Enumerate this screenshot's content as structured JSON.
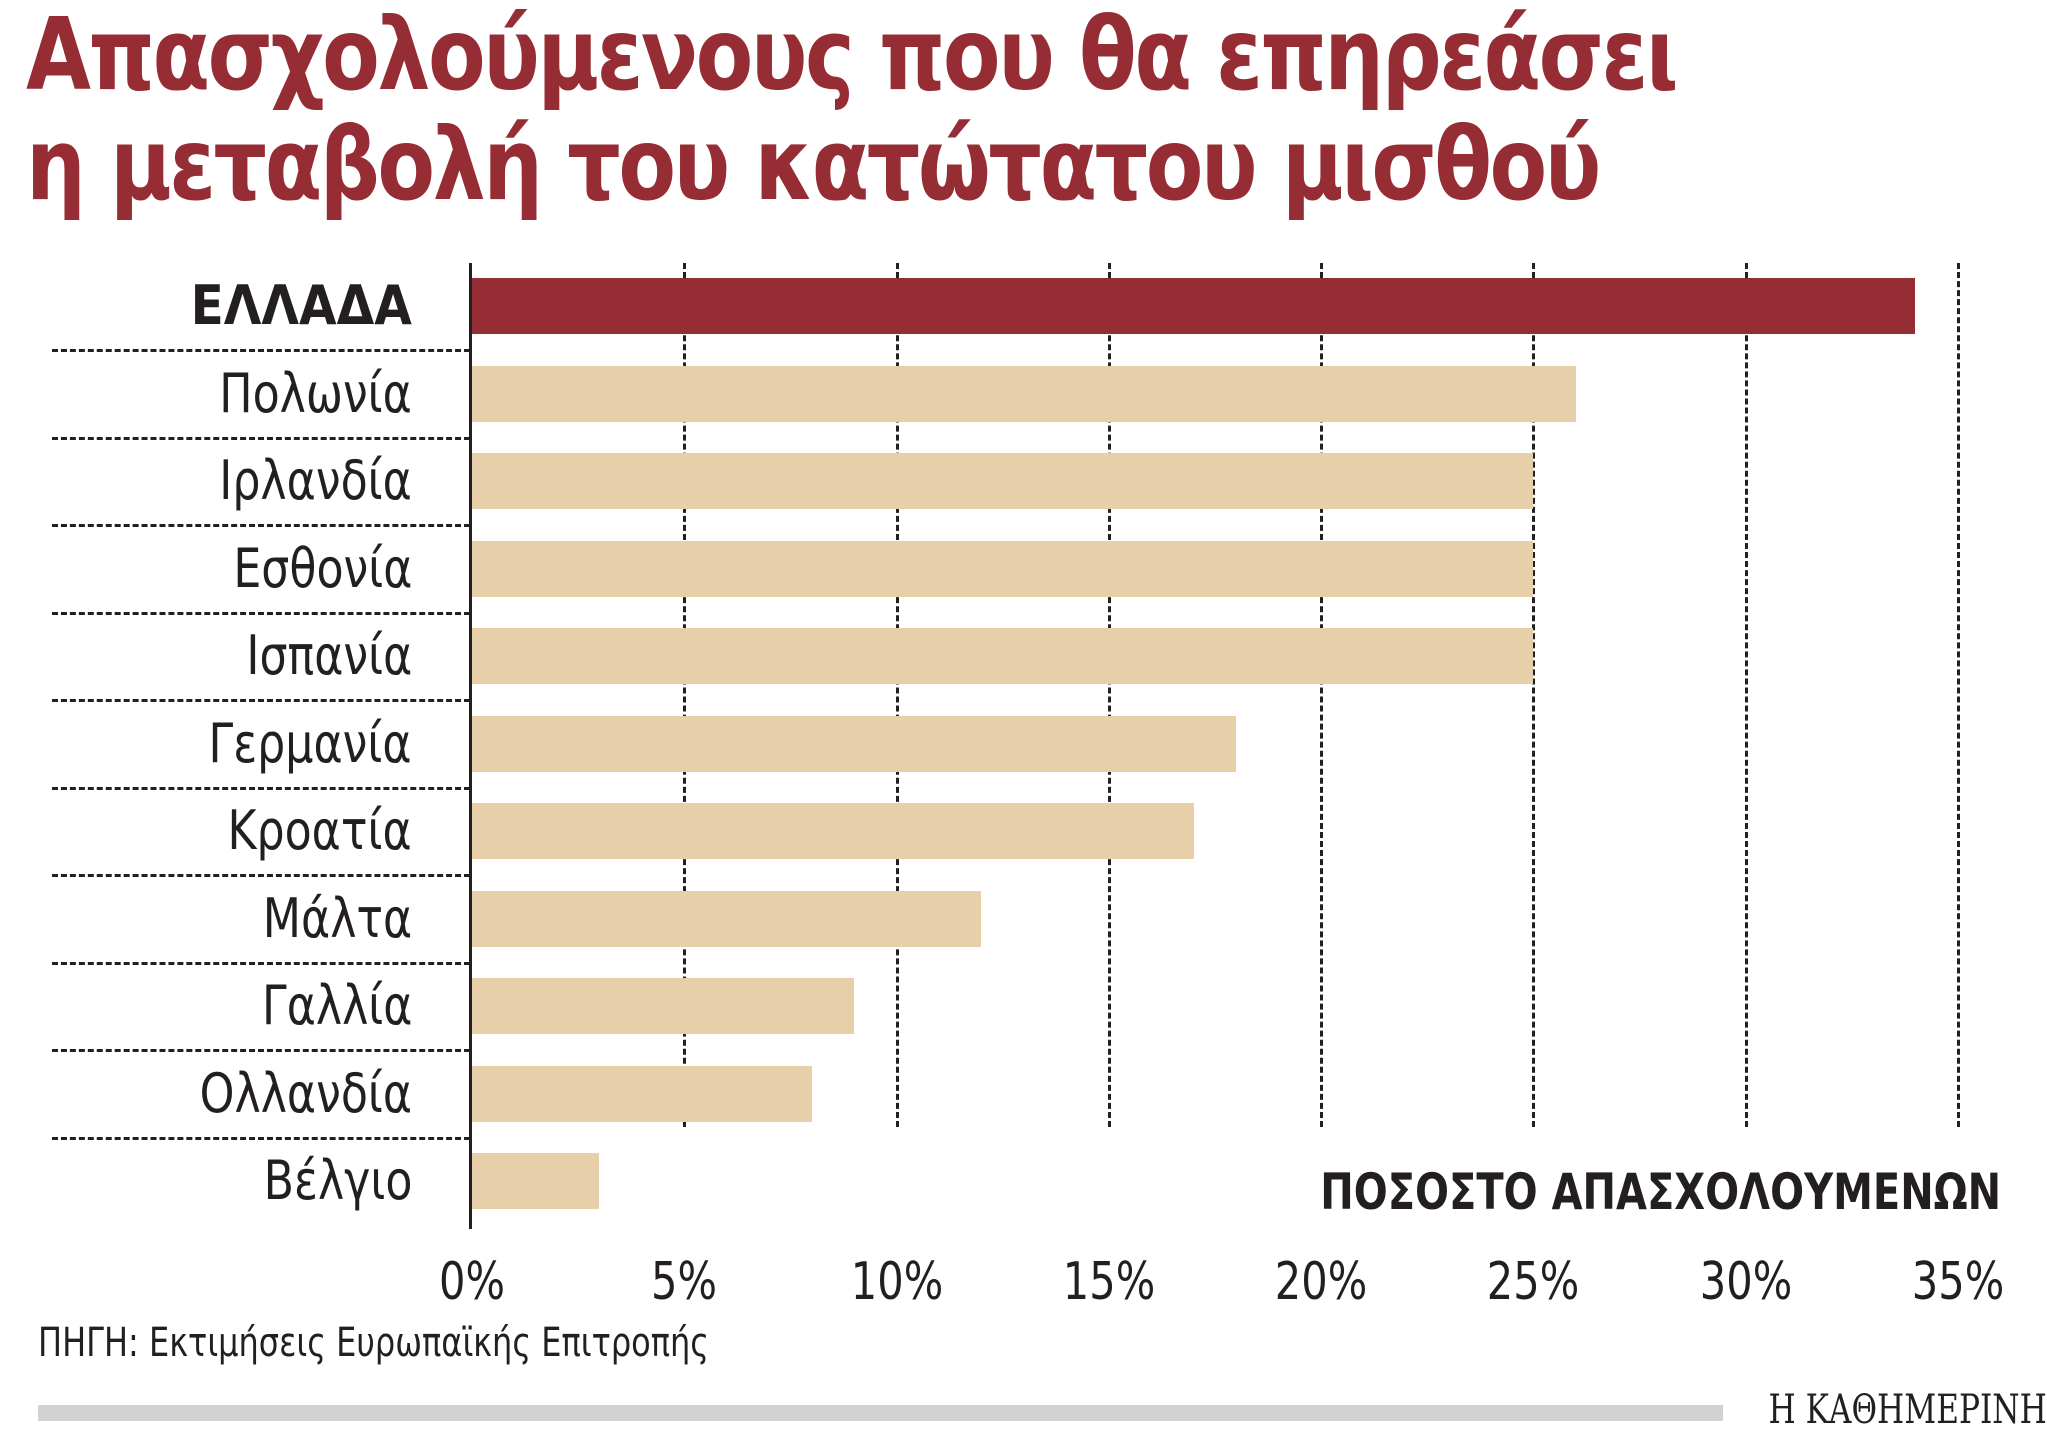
{
  "title": {
    "line1": "Απασχολούμενους που θα επηρεάσει",
    "line2": "η μεταβολή του κατώτατου μισθού"
  },
  "colors": {
    "title": "#962d34",
    "highlight_bar": "#962d34",
    "bar": "#e7d0a9",
    "text": "#231f20",
    "footer_bar": "#d1d2d4"
  },
  "chart": {
    "axis_title": "ΠΟΣΟΣΤΟ ΑΠΑΣΧΟΛΟΥΜΕΝΩΝ",
    "ticks": [
      "0%",
      "5%",
      "10%",
      "15%",
      "20%",
      "25%",
      "30%",
      "35%"
    ],
    "rows": [
      {
        "label": "ΕΛΛΑΔΑ",
        "value": 34,
        "highlight": true
      },
      {
        "label": "Πολωνία",
        "value": 26,
        "highlight": false
      },
      {
        "label": "Ιρλανδία",
        "value": 25,
        "highlight": false
      },
      {
        "label": "Εσθονία",
        "value": 25,
        "highlight": false
      },
      {
        "label": "Ισπανία",
        "value": 25,
        "highlight": false
      },
      {
        "label": "Γερμανία",
        "value": 18,
        "highlight": false
      },
      {
        "label": "Κροατία",
        "value": 17,
        "highlight": false
      },
      {
        "label": "Μάλτα",
        "value": 12,
        "highlight": false
      },
      {
        "label": "Γαλλία",
        "value": 9,
        "highlight": false
      },
      {
        "label": "Ολλανδία",
        "value": 8,
        "highlight": false
      },
      {
        "label": "Βέλγιο",
        "value": 3,
        "highlight": false
      }
    ]
  },
  "footer": {
    "source": "ΠΗΓΗ: Εκτιμήσεις Ευρωπαϊκής Επιτροπής",
    "brand": "Η ΚΑΘΗΜΕΡΙΝΗ"
  },
  "chart_data": {
    "type": "bar",
    "orientation": "horizontal",
    "title": "Απασχολούμενους που θα επηρεάσει η μεταβολή του κατώτατου μισθού",
    "categories": [
      "ΕΛΛΑΔΑ",
      "Πολωνία",
      "Ιρλανδία",
      "Εσθονία",
      "Ισπανία",
      "Γερμανία",
      "Κροατία",
      "Μάλτα",
      "Γαλλία",
      "Ολλανδία",
      "Βέλγιο"
    ],
    "values": [
      34,
      26,
      25,
      25,
      25,
      18,
      17,
      12,
      9,
      8,
      3
    ],
    "highlighted": [
      "ΕΛΛΑΔΑ"
    ],
    "xlabel": "ΠΟΣΟΣΤΟ ΑΠΑΣΧΟΛΟΥΜΕΝΩΝ",
    "ylabel": "",
    "xlim": [
      0,
      35
    ],
    "xticks": [
      "0%",
      "5%",
      "10%",
      "15%",
      "20%",
      "25%",
      "30%",
      "35%"
    ],
    "grid": "vertical dashed at each 5%",
    "legend": "none",
    "source": "ΠΗΓΗ: Εκτιμήσεις Ευρωπαϊκής Επιτροπής"
  }
}
